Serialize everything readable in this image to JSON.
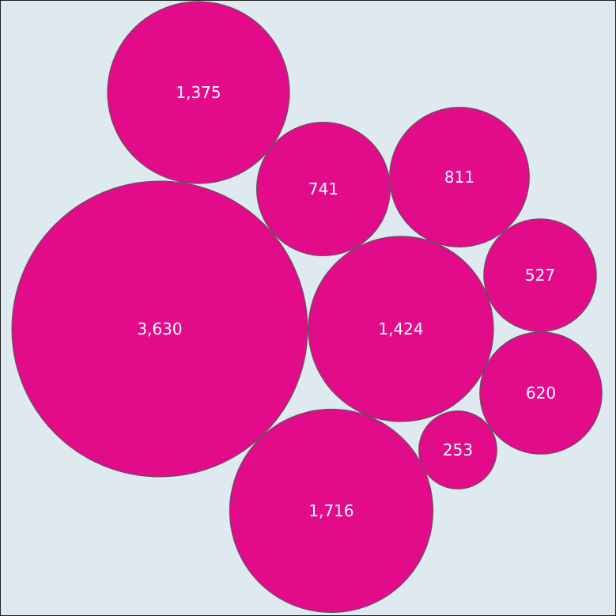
{
  "chart_data": {
    "type": "bubble",
    "values": [
      3630,
      1716,
      1424,
      1375,
      811,
      741,
      620,
      527,
      253
    ],
    "labels": [
      "3,630",
      "1,716",
      "1,424",
      "1,375",
      "811",
      "741",
      "620",
      "527",
      "253"
    ],
    "legend": "none",
    "grid": false,
    "title": "",
    "colors": {
      "bubble_fill": "#e20c8b",
      "bubble_stroke": "#555555",
      "label_text": "#ffffff",
      "background": "#deeaf0"
    }
  }
}
